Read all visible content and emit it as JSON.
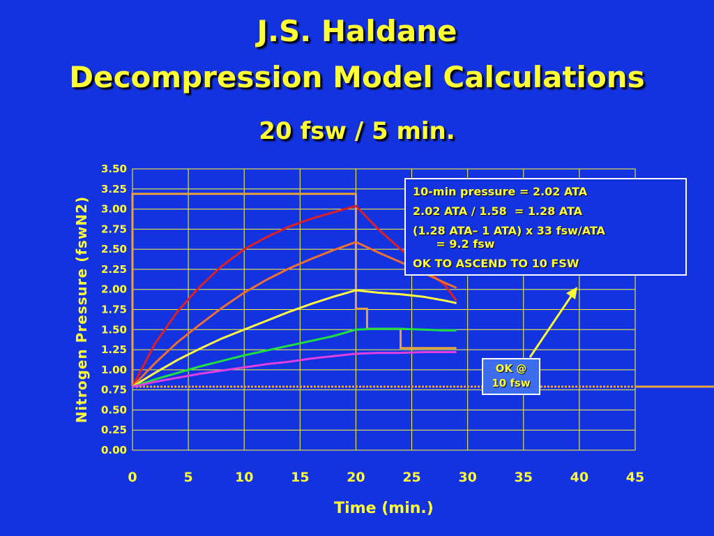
{
  "slide": {
    "title_line1": "J.S. Haldane",
    "title_line2": "Decompression Model Calculations",
    "subtitle": "20 fsw / 5 min."
  },
  "callout": {
    "lines": [
      "10-min pressure = 2.02 ATA",
      "2.02 ATA / 1.58  = 1.28 ATA",
      "(1.28 ATA– 1 ATA) x 33 fsw/ATA\n      = 9.2 fsw",
      "OK TO ASCEND TO 10 FSW"
    ]
  },
  "ok_box": {
    "line1": "OK @",
    "line2": "10 fsw"
  },
  "colors": {
    "background": "#1433e0",
    "text": "#ffff33",
    "grid": "#ffff33"
  },
  "chart_data": {
    "type": "line",
    "xlabel": "Time (min.)",
    "ylabel": "Nitrogen Pressure (fswN2)",
    "xlim": [
      0,
      45
    ],
    "ylim": [
      0,
      3.5
    ],
    "xticks": [
      "0",
      "5",
      "10",
      "15",
      "20",
      "25",
      "30",
      "35",
      "40",
      "45"
    ],
    "yticks": [
      "0.00",
      "0.25",
      "0.50",
      "0.75",
      "1.00",
      "1.25",
      "1.50",
      "1.75",
      "2.00",
      "2.25",
      "2.50",
      "2.75",
      "3.00",
      "3.25",
      "3.50"
    ],
    "grid": true,
    "series": [
      {
        "color": "#e8a33a",
        "step": true,
        "points": [
          [
            0,
            0.79
          ],
          [
            0,
            3.19
          ],
          [
            20,
            3.19
          ],
          [
            20,
            1.76
          ],
          [
            21,
            1.76
          ],
          [
            21,
            1.51
          ],
          [
            24,
            1.51
          ],
          [
            24,
            1.27
          ],
          [
            29,
            1.27
          ]
        ]
      },
      {
        "color": "#e8a33a",
        "dashed": true,
        "points": [
          [
            0,
            0.79
          ],
          [
            45,
            0.79
          ]
        ]
      },
      {
        "color": "#e02020",
        "points": [
          [
            0,
            0.79
          ],
          [
            2,
            1.32
          ],
          [
            4,
            1.72
          ],
          [
            6,
            2.03
          ],
          [
            8,
            2.29
          ],
          [
            10,
            2.5
          ],
          [
            12,
            2.65
          ],
          [
            14,
            2.78
          ],
          [
            16,
            2.88
          ],
          [
            18,
            2.96
          ],
          [
            20,
            3.04
          ],
          [
            22,
            2.75
          ],
          [
            24,
            2.5
          ],
          [
            26,
            2.28
          ],
          [
            28,
            2.05
          ],
          [
            29,
            1.86
          ]
        ]
      },
      {
        "color": "#f07030",
        "points": [
          [
            0,
            0.79
          ],
          [
            2,
            1.08
          ],
          [
            4,
            1.34
          ],
          [
            6,
            1.56
          ],
          [
            8,
            1.77
          ],
          [
            10,
            1.96
          ],
          [
            12,
            2.12
          ],
          [
            14,
            2.26
          ],
          [
            16,
            2.38
          ],
          [
            18,
            2.49
          ],
          [
            20,
            2.59
          ],
          [
            22,
            2.46
          ],
          [
            24,
            2.34
          ],
          [
            26,
            2.21
          ],
          [
            28,
            2.08
          ],
          [
            29,
            2.02
          ]
        ]
      },
      {
        "color": "#ffff40",
        "points": [
          [
            0,
            0.79
          ],
          [
            2,
            0.96
          ],
          [
            4,
            1.12
          ],
          [
            6,
            1.26
          ],
          [
            8,
            1.39
          ],
          [
            10,
            1.5
          ],
          [
            12,
            1.61
          ],
          [
            14,
            1.72
          ],
          [
            16,
            1.82
          ],
          [
            18,
            1.91
          ],
          [
            20,
            1.99
          ],
          [
            22,
            1.96
          ],
          [
            24,
            1.94
          ],
          [
            26,
            1.91
          ],
          [
            28,
            1.86
          ],
          [
            29,
            1.83
          ]
        ]
      },
      {
        "color": "#20e040",
        "points": [
          [
            0,
            0.79
          ],
          [
            2,
            0.88
          ],
          [
            4,
            0.96
          ],
          [
            6,
            1.04
          ],
          [
            8,
            1.11
          ],
          [
            10,
            1.18
          ],
          [
            12,
            1.24
          ],
          [
            14,
            1.3
          ],
          [
            16,
            1.36
          ],
          [
            18,
            1.42
          ],
          [
            20,
            1.5
          ],
          [
            22,
            1.51
          ],
          [
            24,
            1.51
          ],
          [
            26,
            1.5
          ],
          [
            28,
            1.49
          ],
          [
            29,
            1.49
          ]
        ]
      },
      {
        "color": "#e040e0",
        "points": [
          [
            0,
            0.79
          ],
          [
            2,
            0.85
          ],
          [
            4,
            0.9
          ],
          [
            6,
            0.95
          ],
          [
            8,
            0.99
          ],
          [
            10,
            1.03
          ],
          [
            12,
            1.07
          ],
          [
            14,
            1.1
          ],
          [
            16,
            1.14
          ],
          [
            18,
            1.17
          ],
          [
            20,
            1.2
          ],
          [
            22,
            1.21
          ],
          [
            24,
            1.21
          ],
          [
            26,
            1.22
          ],
          [
            28,
            1.22
          ],
          [
            29,
            1.22
          ]
        ]
      }
    ]
  }
}
